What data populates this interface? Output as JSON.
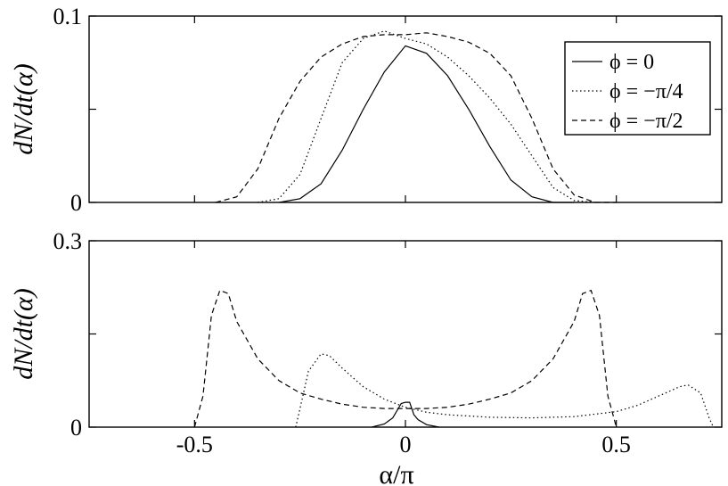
{
  "chart_data": [
    {
      "type": "line",
      "xlabel": "",
      "ylabel": "dN/dt(α)",
      "xlim": [
        -0.75,
        0.75
      ],
      "ylim": [
        0,
        0.1
      ],
      "yticks": [
        0,
        0.1
      ],
      "ytick_labels": [
        "0",
        "0.1"
      ],
      "xticks": [
        -0.5,
        0,
        0.5
      ],
      "xtick_labels": [],
      "legend_position": "top-right",
      "series": [
        {
          "name": "ϕ = 0",
          "style": "solid",
          "x": [
            -0.3,
            -0.25,
            -0.2,
            -0.15,
            -0.1,
            -0.05,
            0,
            0.05,
            0.1,
            0.15,
            0.2,
            0.25,
            0.3,
            0.35,
            0.4
          ],
          "y": [
            0,
            0.002,
            0.01,
            0.028,
            0.05,
            0.07,
            0.084,
            0.08,
            0.068,
            0.05,
            0.03,
            0.012,
            0.003,
            0,
            0
          ]
        },
        {
          "name": "ϕ = −π/4",
          "style": "dotted",
          "x": [
            -0.35,
            -0.3,
            -0.25,
            -0.2,
            -0.15,
            -0.1,
            -0.05,
            0,
            0.05,
            0.1,
            0.15,
            0.2,
            0.25,
            0.3,
            0.35,
            0.4,
            0.45
          ],
          "y": [
            0,
            0.002,
            0.015,
            0.045,
            0.075,
            0.088,
            0.092,
            0.088,
            0.085,
            0.078,
            0.068,
            0.056,
            0.042,
            0.025,
            0.008,
            0.001,
            0
          ]
        },
        {
          "name": "ϕ = −π/2",
          "style": "dashed",
          "x": [
            -0.45,
            -0.4,
            -0.35,
            -0.3,
            -0.25,
            -0.2,
            -0.15,
            -0.1,
            -0.05,
            0,
            0.05,
            0.1,
            0.15,
            0.2,
            0.25,
            0.3,
            0.35,
            0.4,
            0.45,
            0.5
          ],
          "y": [
            0,
            0.003,
            0.018,
            0.045,
            0.065,
            0.078,
            0.085,
            0.089,
            0.09,
            0.09,
            0.091,
            0.089,
            0.086,
            0.08,
            0.068,
            0.045,
            0.018,
            0.004,
            0,
            0
          ]
        }
      ]
    },
    {
      "type": "line",
      "xlabel": "α/π",
      "ylabel": "dN/dt(α)",
      "xlim": [
        -0.75,
        0.75
      ],
      "ylim": [
        0,
        0.3
      ],
      "yticks": [
        0,
        0.3
      ],
      "ytick_labels": [
        "0",
        "0.3"
      ],
      "xticks": [
        -0.5,
        0,
        0.5
      ],
      "xtick_labels": [
        "-0.5",
        "0",
        "0.5"
      ],
      "series": [
        {
          "name": "ϕ = 0",
          "style": "solid",
          "x": [
            -0.08,
            -0.05,
            -0.03,
            -0.01,
            0,
            0.01,
            0.02,
            0.03,
            0.05,
            0.08
          ],
          "y": [
            0,
            0.005,
            0.015,
            0.038,
            0.04,
            0.04,
            0.02,
            0.012,
            0.004,
            0
          ]
        },
        {
          "name": "ϕ = −π/4",
          "style": "dotted",
          "x": [
            -0.26,
            -0.25,
            -0.23,
            -0.2,
            -0.18,
            -0.15,
            -0.1,
            -0.05,
            0,
            0.05,
            0.1,
            0.2,
            0.3,
            0.4,
            0.5,
            0.55,
            0.6,
            0.65,
            0.67,
            0.7,
            0.72,
            0.73
          ],
          "y": [
            0,
            0.03,
            0.09,
            0.118,
            0.115,
            0.095,
            0.065,
            0.045,
            0.032,
            0.024,
            0.02,
            0.016,
            0.015,
            0.017,
            0.025,
            0.035,
            0.05,
            0.065,
            0.068,
            0.055,
            0.015,
            0
          ]
        },
        {
          "name": "ϕ = −π/2",
          "style": "dashed",
          "x": [
            -0.5,
            -0.48,
            -0.46,
            -0.44,
            -0.42,
            -0.4,
            -0.35,
            -0.3,
            -0.25,
            -0.2,
            -0.15,
            -0.1,
            -0.05,
            0,
            0.05,
            0.1,
            0.15,
            0.2,
            0.25,
            0.3,
            0.35,
            0.4,
            0.42,
            0.44,
            0.46,
            0.48,
            0.5
          ],
          "y": [
            0,
            0.05,
            0.18,
            0.22,
            0.215,
            0.17,
            0.11,
            0.075,
            0.055,
            0.045,
            0.037,
            0.032,
            0.03,
            0.03,
            0.03,
            0.032,
            0.037,
            0.045,
            0.055,
            0.075,
            0.11,
            0.17,
            0.215,
            0.22,
            0.18,
            0.05,
            0
          ]
        }
      ]
    }
  ]
}
